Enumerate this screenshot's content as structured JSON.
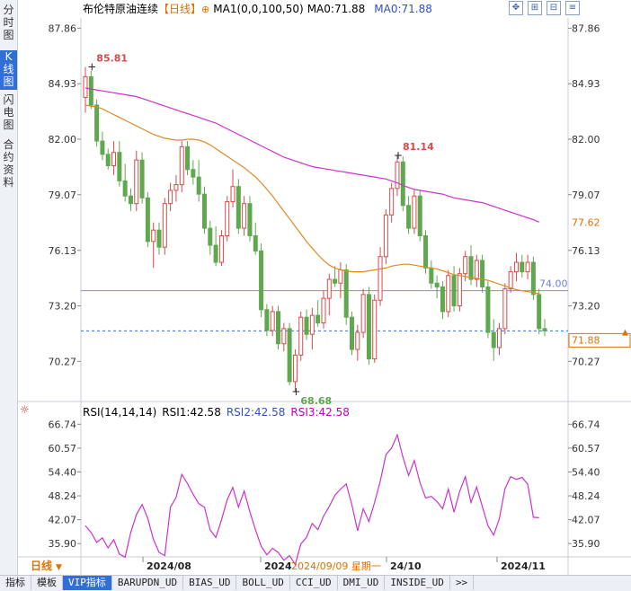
{
  "left_tabs": [
    {
      "label": "分时图",
      "active": false
    },
    {
      "label": "K线图",
      "active": true
    },
    {
      "label": "闪电图",
      "active": false
    },
    {
      "label": "合约资料",
      "active": false
    }
  ],
  "header": {
    "instrument": "布伦特原油连续",
    "period_tag": "【日线】",
    "ma_label": "MA1(0,0,100,50)",
    "ma0_label": "MA0:71.88",
    "ma0_label2": "MA0:71.88",
    "ma_color": "#c000c0"
  },
  "rsi_header": {
    "label": "RSI(14,14,14)",
    "rsi1": "RSI1:42.58",
    "rsi2": "RSI2:42.58",
    "rsi3": "RSI3:42.58"
  },
  "colors": {
    "up": "#d84a4a",
    "down": "#5fa84f",
    "ma_slow": "#cc33cc",
    "ma_fast": "#e08a1e",
    "hline": "#9b7fd4",
    "last": "#2f6fd6",
    "accent": "#e07000"
  },
  "chart_data": [
    {
      "type": "candlestick",
      "title": "布伦特原油连续 日线",
      "y_ticks": [
        "87.86",
        "84.93",
        "82.00",
        "79.07",
        "76.13",
        "73.20",
        "70.27"
      ],
      "ylim": [
        68.2,
        88.4
      ],
      "x_labels": [
        "2024/08",
        "2024",
        "24/10",
        "2024/11"
      ],
      "cursor_label": "2024/09/09 星期一",
      "annotations": [
        {
          "text": "85.81",
          "value": 85.81
        },
        {
          "text": "81.14",
          "value": 81.14
        },
        {
          "text": "68.68",
          "value": 68.68
        }
      ],
      "right_labels": [
        {
          "text": "77.62",
          "value": 77.62
        },
        {
          "text": "74.00",
          "value": 74.0
        },
        {
          "text": "71.88",
          "value": 71.88
        }
      ],
      "horizontal_line": 74.0,
      "last_price": 71.88,
      "candles": [
        {
          "o": 84.2,
          "h": 85.81,
          "l": 83.4,
          "c": 85.3
        },
        {
          "o": 85.3,
          "h": 85.6,
          "l": 83.6,
          "c": 83.8
        },
        {
          "o": 83.8,
          "h": 84.1,
          "l": 81.6,
          "c": 81.9
        },
        {
          "o": 81.9,
          "h": 82.4,
          "l": 80.9,
          "c": 81.2
        },
        {
          "o": 81.2,
          "h": 81.5,
          "l": 80.4,
          "c": 80.6
        },
        {
          "o": 80.6,
          "h": 81.9,
          "l": 80.1,
          "c": 81.3
        },
        {
          "o": 81.3,
          "h": 81.9,
          "l": 79.5,
          "c": 79.8
        },
        {
          "o": 79.8,
          "h": 80.7,
          "l": 78.7,
          "c": 79.0
        },
        {
          "o": 79.0,
          "h": 79.4,
          "l": 78.2,
          "c": 78.6
        },
        {
          "o": 78.6,
          "h": 81.4,
          "l": 78.2,
          "c": 80.9
        },
        {
          "o": 80.9,
          "h": 81.3,
          "l": 78.6,
          "c": 78.9
        },
        {
          "o": 78.9,
          "h": 79.2,
          "l": 76.3,
          "c": 76.6
        },
        {
          "o": 76.6,
          "h": 77.6,
          "l": 75.2,
          "c": 77.2
        },
        {
          "o": 77.2,
          "h": 77.6,
          "l": 75.9,
          "c": 76.3
        },
        {
          "o": 76.3,
          "h": 78.9,
          "l": 75.9,
          "c": 78.6
        },
        {
          "o": 78.6,
          "h": 79.7,
          "l": 78.2,
          "c": 79.3
        },
        {
          "o": 79.3,
          "h": 80.1,
          "l": 78.7,
          "c": 79.6
        },
        {
          "o": 79.6,
          "h": 81.9,
          "l": 79.2,
          "c": 81.6
        },
        {
          "o": 81.6,
          "h": 81.9,
          "l": 80.1,
          "c": 80.4
        },
        {
          "o": 80.4,
          "h": 80.9,
          "l": 79.6,
          "c": 80.0
        },
        {
          "o": 80.0,
          "h": 80.9,
          "l": 78.7,
          "c": 79.1
        },
        {
          "o": 79.1,
          "h": 79.5,
          "l": 77.0,
          "c": 77.3
        },
        {
          "o": 77.3,
          "h": 77.7,
          "l": 75.9,
          "c": 76.4
        },
        {
          "o": 76.4,
          "h": 77.4,
          "l": 75.3,
          "c": 75.5
        },
        {
          "o": 75.5,
          "h": 77.2,
          "l": 75.3,
          "c": 76.9
        },
        {
          "o": 76.9,
          "h": 79.0,
          "l": 76.6,
          "c": 78.7
        },
        {
          "o": 78.7,
          "h": 80.4,
          "l": 78.4,
          "c": 79.5
        },
        {
          "o": 79.5,
          "h": 79.9,
          "l": 77.0,
          "c": 77.3
        },
        {
          "o": 77.3,
          "h": 79.0,
          "l": 76.9,
          "c": 78.6
        },
        {
          "o": 78.6,
          "h": 79.0,
          "l": 76.6,
          "c": 76.9
        },
        {
          "o": 76.9,
          "h": 77.6,
          "l": 75.9,
          "c": 76.1
        },
        {
          "o": 76.1,
          "h": 76.5,
          "l": 72.6,
          "c": 73.0
        },
        {
          "o": 73.0,
          "h": 73.3,
          "l": 71.6,
          "c": 71.9
        },
        {
          "o": 71.9,
          "h": 73.2,
          "l": 71.6,
          "c": 72.9
        },
        {
          "o": 72.9,
          "h": 73.2,
          "l": 70.9,
          "c": 71.2
        },
        {
          "o": 71.2,
          "h": 72.3,
          "l": 70.8,
          "c": 72.0
        },
        {
          "o": 72.0,
          "h": 72.3,
          "l": 69.0,
          "c": 69.2
        },
        {
          "o": 69.2,
          "h": 70.9,
          "l": 68.68,
          "c": 70.6
        },
        {
          "o": 70.6,
          "h": 72.9,
          "l": 70.3,
          "c": 72.6
        },
        {
          "o": 72.6,
          "h": 73.0,
          "l": 71.4,
          "c": 71.7
        },
        {
          "o": 71.7,
          "h": 73.1,
          "l": 70.9,
          "c": 72.7
        },
        {
          "o": 72.7,
          "h": 73.5,
          "l": 72.1,
          "c": 72.3
        },
        {
          "o": 72.3,
          "h": 74.0,
          "l": 72.0,
          "c": 73.6
        },
        {
          "o": 73.6,
          "h": 74.9,
          "l": 72.7,
          "c": 74.6
        },
        {
          "o": 74.6,
          "h": 75.3,
          "l": 74.2,
          "c": 74.4
        },
        {
          "o": 74.4,
          "h": 75.5,
          "l": 73.6,
          "c": 75.1
        },
        {
          "o": 75.1,
          "h": 75.4,
          "l": 72.2,
          "c": 72.6
        },
        {
          "o": 72.6,
          "h": 72.9,
          "l": 70.6,
          "c": 70.9
        },
        {
          "o": 70.9,
          "h": 72.2,
          "l": 70.3,
          "c": 71.8
        },
        {
          "o": 71.8,
          "h": 74.1,
          "l": 71.5,
          "c": 73.8
        },
        {
          "o": 73.8,
          "h": 74.2,
          "l": 70.1,
          "c": 70.4
        },
        {
          "o": 70.4,
          "h": 73.8,
          "l": 70.2,
          "c": 73.5
        },
        {
          "o": 73.5,
          "h": 76.3,
          "l": 73.2,
          "c": 75.8
        },
        {
          "o": 75.8,
          "h": 78.3,
          "l": 75.4,
          "c": 78.0
        },
        {
          "o": 78.0,
          "h": 79.7,
          "l": 77.6,
          "c": 79.4
        },
        {
          "o": 79.4,
          "h": 81.14,
          "l": 79.0,
          "c": 80.8
        },
        {
          "o": 80.8,
          "h": 81.1,
          "l": 78.2,
          "c": 78.5
        },
        {
          "o": 78.5,
          "h": 79.0,
          "l": 77.0,
          "c": 77.3
        },
        {
          "o": 77.3,
          "h": 79.3,
          "l": 77.0,
          "c": 79.0
        },
        {
          "o": 79.0,
          "h": 79.3,
          "l": 76.6,
          "c": 76.9
        },
        {
          "o": 76.9,
          "h": 77.2,
          "l": 74.9,
          "c": 75.2
        },
        {
          "o": 75.2,
          "h": 75.6,
          "l": 74.1,
          "c": 74.4
        },
        {
          "o": 74.4,
          "h": 74.8,
          "l": 73.6,
          "c": 74.2
        },
        {
          "o": 74.2,
          "h": 74.5,
          "l": 72.5,
          "c": 72.9
        },
        {
          "o": 72.9,
          "h": 75.1,
          "l": 72.6,
          "c": 74.8
        },
        {
          "o": 74.8,
          "h": 75.3,
          "l": 72.9,
          "c": 73.2
        },
        {
          "o": 73.2,
          "h": 75.2,
          "l": 72.9,
          "c": 74.9
        },
        {
          "o": 74.9,
          "h": 76.1,
          "l": 74.5,
          "c": 75.8
        },
        {
          "o": 75.8,
          "h": 76.4,
          "l": 74.3,
          "c": 74.6
        },
        {
          "o": 74.6,
          "h": 75.9,
          "l": 74.2,
          "c": 75.6
        },
        {
          "o": 75.6,
          "h": 75.9,
          "l": 73.9,
          "c": 74.2
        },
        {
          "o": 74.2,
          "h": 74.5,
          "l": 71.5,
          "c": 71.8
        },
        {
          "o": 71.8,
          "h": 72.5,
          "l": 70.3,
          "c": 71.0
        },
        {
          "o": 71.0,
          "h": 72.3,
          "l": 70.6,
          "c": 72.0
        },
        {
          "o": 72.0,
          "h": 74.4,
          "l": 71.7,
          "c": 74.1
        },
        {
          "o": 74.1,
          "h": 75.3,
          "l": 73.9,
          "c": 75.0
        },
        {
          "o": 75.0,
          "h": 76.0,
          "l": 74.5,
          "c": 75.5
        },
        {
          "o": 75.5,
          "h": 75.9,
          "l": 74.7,
          "c": 75.0
        },
        {
          "o": 75.0,
          "h": 75.9,
          "l": 74.6,
          "c": 75.5
        },
        {
          "o": 75.5,
          "h": 75.8,
          "l": 73.5,
          "c": 73.8
        },
        {
          "o": 73.8,
          "h": 74.1,
          "l": 71.7,
          "c": 72.0
        },
        {
          "o": 72.0,
          "h": 72.5,
          "l": 71.6,
          "c": 71.88
        }
      ],
      "ma_slow": [
        84.7,
        84.65,
        84.6,
        84.55,
        84.5,
        84.45,
        84.4,
        84.35,
        84.3,
        84.25,
        84.15,
        84.05,
        83.95,
        83.85,
        83.75,
        83.65,
        83.55,
        83.45,
        83.35,
        83.25,
        83.15,
        83.05,
        82.95,
        82.85,
        82.7,
        82.55,
        82.4,
        82.25,
        82.1,
        81.95,
        81.8,
        81.65,
        81.5,
        81.35,
        81.2,
        81.05,
        80.95,
        80.85,
        80.75,
        80.65,
        80.55,
        80.5,
        80.45,
        80.4,
        80.35,
        80.3,
        80.25,
        80.2,
        80.15,
        80.1,
        80.05,
        80.0,
        79.95,
        79.9,
        79.8,
        79.7,
        79.55,
        79.45,
        79.35,
        79.3,
        79.25,
        79.2,
        79.15,
        79.1,
        79.0,
        78.9,
        78.85,
        78.8,
        78.75,
        78.7,
        78.65,
        78.55,
        78.45,
        78.35,
        78.25,
        78.15,
        78.05,
        77.95,
        77.85,
        77.75,
        77.62
      ],
      "ma_fast": [
        83.8,
        83.75,
        83.7,
        83.6,
        83.45,
        83.3,
        83.15,
        83.0,
        82.85,
        82.7,
        82.55,
        82.4,
        82.25,
        82.15,
        82.05,
        82.0,
        81.95,
        81.95,
        82.0,
        82.0,
        81.95,
        81.85,
        81.7,
        81.5,
        81.3,
        81.1,
        80.9,
        80.7,
        80.5,
        80.25,
        80.0,
        79.7,
        79.35,
        79.0,
        78.6,
        78.2,
        77.8,
        77.4,
        77.0,
        76.6,
        76.25,
        75.9,
        75.6,
        75.35,
        75.2,
        75.1,
        75.05,
        75.0,
        75.0,
        75.0,
        75.05,
        75.1,
        75.15,
        75.2,
        75.3,
        75.35,
        75.4,
        75.4,
        75.35,
        75.3,
        75.25,
        75.2,
        75.15,
        75.05,
        74.95,
        74.85,
        74.8,
        74.75,
        74.7,
        74.65,
        74.6,
        74.55,
        74.45,
        74.35,
        74.25,
        74.15,
        74.05,
        74.0,
        73.95,
        73.9,
        73.85
      ]
    },
    {
      "type": "line",
      "title": "RSI(14,14,14)",
      "y_ticks": [
        "66.74",
        "60.57",
        "54.40",
        "48.24",
        "42.07",
        "35.90"
      ],
      "ylim": [
        33.4,
        69.6
      ],
      "series": [
        {
          "name": "RSI3",
          "values": [
            40.5,
            38.8,
            36.2,
            37.4,
            34.8,
            36.9,
            33.2,
            32.4,
            38.8,
            43.4,
            46.0,
            42.4,
            37.0,
            33.6,
            32.8,
            45.3,
            47.8,
            53.8,
            51.4,
            48.6,
            46.2,
            45.3,
            39.4,
            37.5,
            42.0,
            47.2,
            50.4,
            45.3,
            49.5,
            44.1,
            39.4,
            35.2,
            33.0,
            34.7,
            33.6,
            31.6,
            32.8,
            30.5,
            35.8,
            37.5,
            41.1,
            39.5,
            43.0,
            45.5,
            48.4,
            50.0,
            51.3,
            45.9,
            39.2,
            44.9,
            41.6,
            46.5,
            52.0,
            58.9,
            60.6,
            64.0,
            58.2,
            53.5,
            57.4,
            51.7,
            47.7,
            48.1,
            46.8,
            44.9,
            50.0,
            44.0,
            49.4,
            53.2,
            46.5,
            50.5,
            45.5,
            40.5,
            38.1,
            42.3,
            50.1,
            53.2,
            52.5,
            53.0,
            51.2,
            42.7,
            42.58
          ]
        }
      ]
    }
  ],
  "bottom": {
    "period": "日线",
    "tabs": [
      {
        "label": "指标",
        "active": false
      },
      {
        "label": "模板",
        "active": false
      },
      {
        "label": "VIP指标",
        "active": true
      },
      {
        "label": "BARUPDN_UD",
        "active": false
      },
      {
        "label": "BIAS_UD",
        "active": false
      },
      {
        "label": "BOLL_UD",
        "active": false
      },
      {
        "label": "CCI_UD",
        "active": false
      },
      {
        "label": "DMI_UD",
        "active": false
      },
      {
        "label": "INSIDE_UD",
        "active": false
      },
      {
        "label": ">>",
        "active": false
      }
    ]
  }
}
